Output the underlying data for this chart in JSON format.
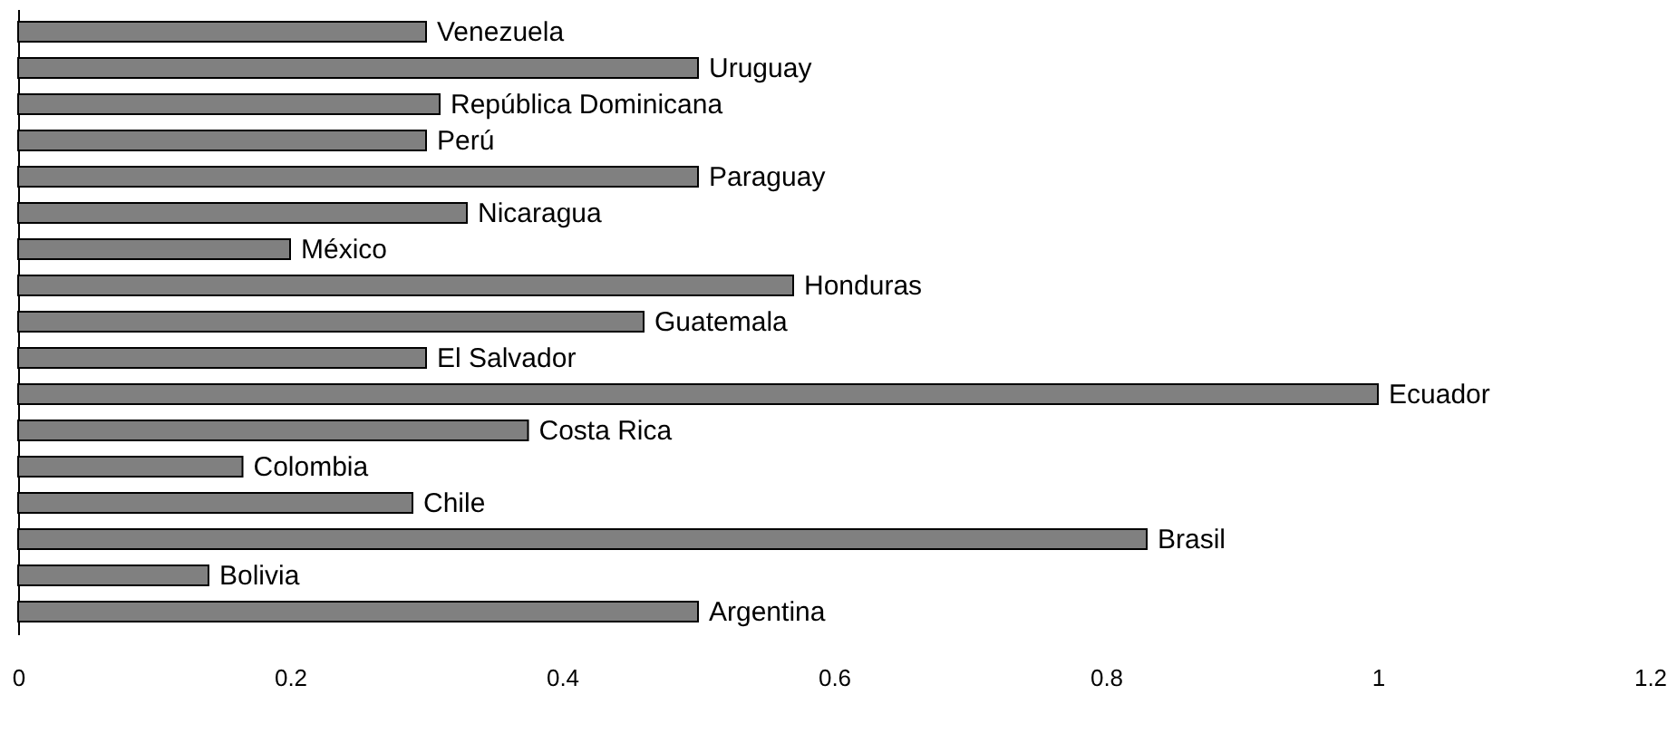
{
  "chart_data": {
    "type": "bar",
    "orientation": "horizontal",
    "categories": [
      "Venezuela",
      "Uruguay",
      "República Dominicana",
      "Perú",
      "Paraguay",
      "Nicaragua",
      "México",
      "Honduras",
      "Guatemala",
      "El Salvador",
      "Ecuador",
      "Costa Rica",
      "Colombia",
      "Chile",
      "Brasil",
      "Bolivia",
      "Argentina"
    ],
    "values": [
      0.3,
      0.5,
      0.31,
      0.3,
      0.5,
      0.33,
      0.2,
      0.57,
      0.46,
      0.3,
      1.0,
      0.375,
      0.165,
      0.29,
      0.83,
      0.14,
      0.5
    ],
    "color": "#808080",
    "xlim": [
      0,
      1.2
    ],
    "xticks": [
      0,
      0.2,
      0.4,
      0.6,
      0.8,
      1,
      1.2
    ],
    "tick_labels": "x",
    "grid": false
  }
}
